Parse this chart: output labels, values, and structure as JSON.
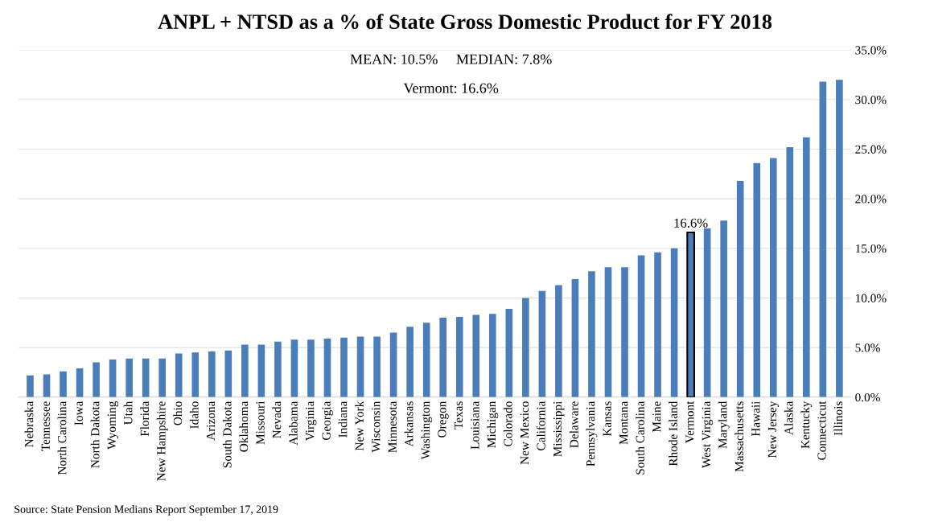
{
  "chart_data": {
    "type": "bar",
    "title": "ANPL + NTSD as a % of State Gross Domestic Product for FY 2018",
    "categories": [
      "Nebraska",
      "Tennessee",
      "North Carolina",
      "Iowa",
      "North Dakota",
      "Wyoming",
      "Utah",
      "Florida",
      "New Hampshire",
      "Ohio",
      "Idaho",
      "Arizona",
      "South Dakota",
      "Oklahoma",
      "Missouri",
      "Nevada",
      "Alabama",
      "Virginia",
      "Georgia",
      "Indiana",
      "New York",
      "Wisconsin",
      "Minnesota",
      "Arkansas",
      "Washington",
      "Oregon",
      "Texas",
      "Louisiana",
      "Michigan",
      "Colorado",
      "New Mexico",
      "California",
      "Mississippi",
      "Delaware",
      "Pennsylvania",
      "Kansas",
      "Montana",
      "South Carolina",
      "Maine",
      "Rhode Island",
      "Vermont",
      "West Virginia",
      "Maryland",
      "Massachusetts",
      "Hawaii",
      "New Jersey",
      "Alaska",
      "Kentucky",
      "Connecticut",
      "Illinois"
    ],
    "values": [
      2.2,
      2.3,
      2.6,
      2.9,
      3.5,
      3.8,
      3.9,
      3.9,
      3.9,
      4.4,
      4.5,
      4.6,
      4.7,
      5.3,
      5.3,
      5.6,
      5.8,
      5.8,
      5.9,
      6.0,
      6.1,
      6.1,
      6.5,
      7.1,
      7.5,
      8.0,
      8.1,
      8.3,
      8.4,
      8.9,
      10.0,
      10.7,
      11.3,
      11.9,
      12.7,
      13.1,
      13.1,
      14.3,
      14.6,
      15.0,
      16.6,
      17.0,
      17.8,
      21.8,
      23.6,
      24.1,
      25.2,
      26.2,
      31.8,
      32.0
    ],
    "value_labels": [
      null,
      null,
      null,
      null,
      null,
      null,
      null,
      null,
      null,
      null,
      null,
      null,
      null,
      null,
      null,
      null,
      null,
      null,
      null,
      null,
      null,
      null,
      null,
      null,
      null,
      null,
      null,
      null,
      null,
      null,
      null,
      null,
      null,
      null,
      null,
      null,
      null,
      null,
      null,
      null,
      "16.6%",
      null,
      null,
      null,
      null,
      null,
      null,
      null,
      null,
      null
    ],
    "color": "#4a7ebb",
    "ylim": [
      0,
      35
    ],
    "yticks": [
      {
        "value": 0,
        "label": "0.0%"
      },
      {
        "value": 5,
        "label": "5.0%"
      },
      {
        "value": 10,
        "label": "10.0%"
      },
      {
        "value": 15,
        "label": "15.0%"
      },
      {
        "value": 20,
        "label": "20.0%"
      },
      {
        "value": 25,
        "label": "25.0%"
      },
      {
        "value": 30,
        "label": "30.0%"
      },
      {
        "value": 35,
        "label": "35.0%"
      }
    ],
    "grid": "y",
    "annotations": [
      "MEAN: 10.5%     MEDIAN: 7.8%",
      "Vermont: 16.6%",
      "Source: State Pension Medians Report September 17, 2019"
    ]
  }
}
